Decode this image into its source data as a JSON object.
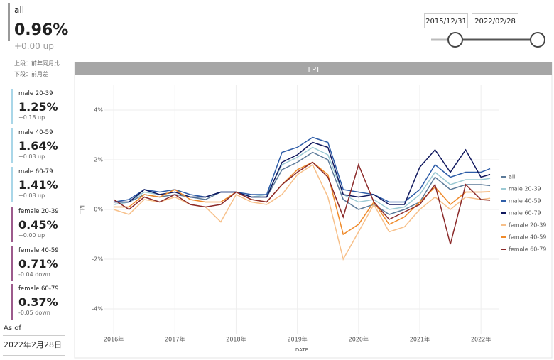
{
  "header": {
    "label": "all",
    "value": "0.96%",
    "delta": "+0.00 up",
    "notes": [
      "上段：前年同月比",
      "下段：前月差"
    ]
  },
  "kpis": [
    {
      "label": "male 20-39",
      "value": "1.25%",
      "delta": "+0.18 up",
      "color": "#a9d6e8"
    },
    {
      "label": "male 40-59",
      "value": "1.64%",
      "delta": "+0.03 up",
      "color": "#a9d6e8"
    },
    {
      "label": "male 60-79",
      "value": "1.41%",
      "delta": "+0.08 up",
      "color": "#a9d6e8"
    },
    {
      "label": "female 20-39",
      "value": "0.45%",
      "delta": "+0.00 up",
      "color": "#9c5a8c"
    },
    {
      "label": "female 40-59",
      "value": "0.71%",
      "delta": "-0.04 down",
      "color": "#9c5a8c"
    },
    {
      "label": "female 60-79",
      "value": "0.37%",
      "delta": "-0.05 down",
      "color": "#9c5a8c"
    }
  ],
  "as_of": {
    "label": "As of",
    "date": "2022年2月28日"
  },
  "date_range": {
    "start": "2015/12/31",
    "end": "2022/02/28"
  },
  "chart_data": {
    "type": "line",
    "title": "TPI",
    "x_label": "DATE",
    "y_label": "TPI",
    "x": [
      2016,
      2016.25,
      2016.5,
      2016.75,
      2017,
      2017.25,
      2017.5,
      2017.75,
      2018,
      2018.25,
      2018.5,
      2018.75,
      2019,
      2019.25,
      2019.5,
      2019.75,
      2020,
      2020.25,
      2020.5,
      2020.75,
      2021,
      2021.25,
      2021.5,
      2021.75,
      2022,
      2022.15
    ],
    "xlim": [
      2015.5,
      2022.3
    ],
    "xticks": [
      {
        "value": 2016,
        "label": "2016年"
      },
      {
        "value": 2017,
        "label": "2017年"
      },
      {
        "value": 2018,
        "label": "2018年"
      },
      {
        "value": 2019,
        "label": "2019年"
      },
      {
        "value": 2020,
        "label": "2020年"
      },
      {
        "value": 2021,
        "label": "2021年"
      },
      {
        "value": 2022,
        "label": "2022年"
      }
    ],
    "ylim": [
      -5,
      5
    ],
    "yticks": [
      {
        "value": -4,
        "label": "-4%"
      },
      {
        "value": -2,
        "label": "-2%"
      },
      {
        "value": 0,
        "label": "0%"
      },
      {
        "value": 2,
        "label": "2%"
      },
      {
        "value": 4,
        "label": "4%"
      }
    ],
    "grid": true,
    "legend": "right",
    "series": [
      {
        "name": "all",
        "color": "#5b7a99",
        "values": [
          0.2,
          0.3,
          0.6,
          0.5,
          0.6,
          0.5,
          0.4,
          0.7,
          0.7,
          0.5,
          0.5,
          1.6,
          1.9,
          2.3,
          2.0,
          0.4,
          0.0,
          0.2,
          -0.2,
          0.0,
          0.3,
          1.3,
          0.8,
          1.0,
          1.0,
          0.96
        ]
      },
      {
        "name": "male 20-39",
        "color": "#9ccad4",
        "values": [
          0.2,
          0.3,
          0.7,
          0.6,
          0.7,
          0.5,
          0.5,
          0.7,
          0.7,
          0.5,
          0.6,
          1.8,
          2.1,
          2.5,
          2.2,
          0.6,
          0.3,
          0.4,
          0.0,
          0.1,
          0.6,
          1.5,
          1.0,
          1.2,
          1.2,
          1.25
        ]
      },
      {
        "name": "male 40-59",
        "color": "#2e5da8",
        "values": [
          0.3,
          0.4,
          0.8,
          0.7,
          0.8,
          0.6,
          0.5,
          0.7,
          0.7,
          0.6,
          0.6,
          2.3,
          2.5,
          2.9,
          2.7,
          0.8,
          0.7,
          0.6,
          0.3,
          0.3,
          0.8,
          1.8,
          1.3,
          1.5,
          1.5,
          1.64
        ]
      },
      {
        "name": "male 60-79",
        "color": "#10185e",
        "values": [
          0.3,
          0.3,
          0.8,
          0.6,
          0.7,
          0.5,
          0.5,
          0.7,
          0.7,
          0.5,
          0.5,
          1.9,
          2.2,
          2.7,
          2.5,
          0.6,
          0.5,
          0.6,
          0.2,
          0.2,
          1.7,
          2.4,
          1.5,
          2.4,
          1.3,
          1.41
        ]
      },
      {
        "name": "female 20-39",
        "color": "#f7c08a",
        "values": [
          0.0,
          -0.2,
          0.4,
          0.3,
          0.5,
          0.2,
          0.1,
          -0.5,
          0.6,
          0.3,
          0.2,
          0.6,
          1.4,
          1.8,
          0.5,
          -2.0,
          -0.9,
          0.2,
          -0.9,
          -0.7,
          0.0,
          0.5,
          0.0,
          0.5,
          0.4,
          0.45
        ]
      },
      {
        "name": "female 40-59",
        "color": "#ef8a2a",
        "values": [
          0.1,
          0.1,
          0.6,
          0.5,
          0.8,
          0.4,
          0.3,
          0.3,
          0.7,
          0.4,
          0.3,
          1.0,
          1.6,
          1.9,
          1.4,
          -1.0,
          -0.6,
          0.3,
          -0.6,
          -0.3,
          0.3,
          0.9,
          0.2,
          0.7,
          0.7,
          0.71
        ]
      },
      {
        "name": "female 60-79",
        "color": "#8b2a2a",
        "values": [
          0.4,
          0.0,
          0.5,
          0.3,
          0.6,
          0.2,
          0.1,
          0.2,
          0.7,
          0.4,
          0.3,
          1.0,
          1.5,
          1.9,
          1.3,
          -0.3,
          1.8,
          0.3,
          -0.4,
          -0.1,
          0.2,
          1.0,
          -1.4,
          1.0,
          0.4,
          0.37
        ]
      }
    ]
  }
}
